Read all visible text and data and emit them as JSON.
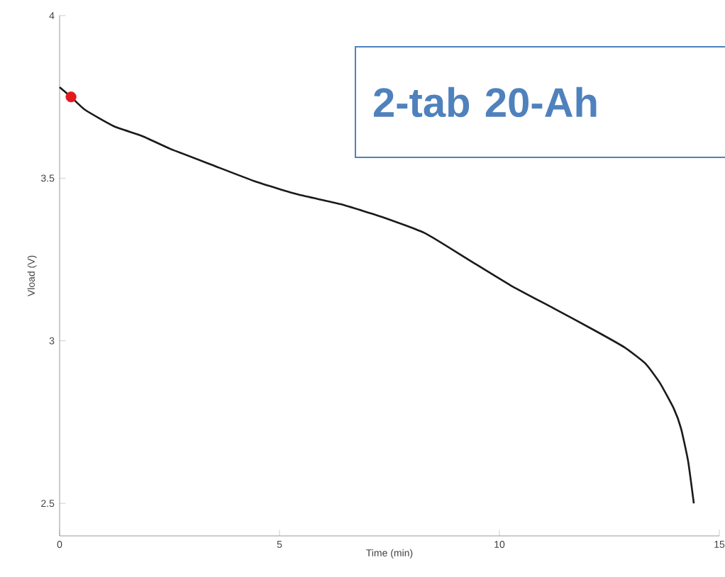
{
  "chart_data": {
    "type": "line",
    "xlabel": "Time (min)",
    "ylabel": "Vload (V)",
    "annotations": [
      "2-tab 20-Ah"
    ],
    "xlim": [
      0,
      15
    ],
    "ylim": [
      2.4,
      4
    ],
    "xticks": [
      0,
      5,
      10,
      15
    ],
    "yticks": [
      2.5,
      3,
      3.5,
      4
    ],
    "grid": false,
    "series": [
      {
        "color": "#1a1a1a",
        "x": [
          0,
          0.26,
          0.58,
          1.23,
          1.87,
          2.52,
          3.48,
          4.45,
          5.42,
          6.39,
          7.35,
          8.32,
          9.29,
          10.26,
          11.23,
          12.19,
          12.84,
          13.32,
          13.65,
          13.97,
          14.13,
          14.29,
          14.42
        ],
        "values": [
          3.78,
          3.75,
          3.71,
          3.66,
          3.63,
          3.59,
          3.54,
          3.49,
          3.45,
          3.42,
          3.38,
          3.33,
          3.25,
          3.17,
          3.1,
          3.03,
          2.98,
          2.93,
          2.87,
          2.79,
          2.73,
          2.63,
          2.5
        ]
      },
      {
        "type": "scatter",
        "color": "#e31a1c",
        "marker": "circle",
        "x": [
          0.26
        ],
        "values": [
          3.75
        ]
      }
    ]
  }
}
